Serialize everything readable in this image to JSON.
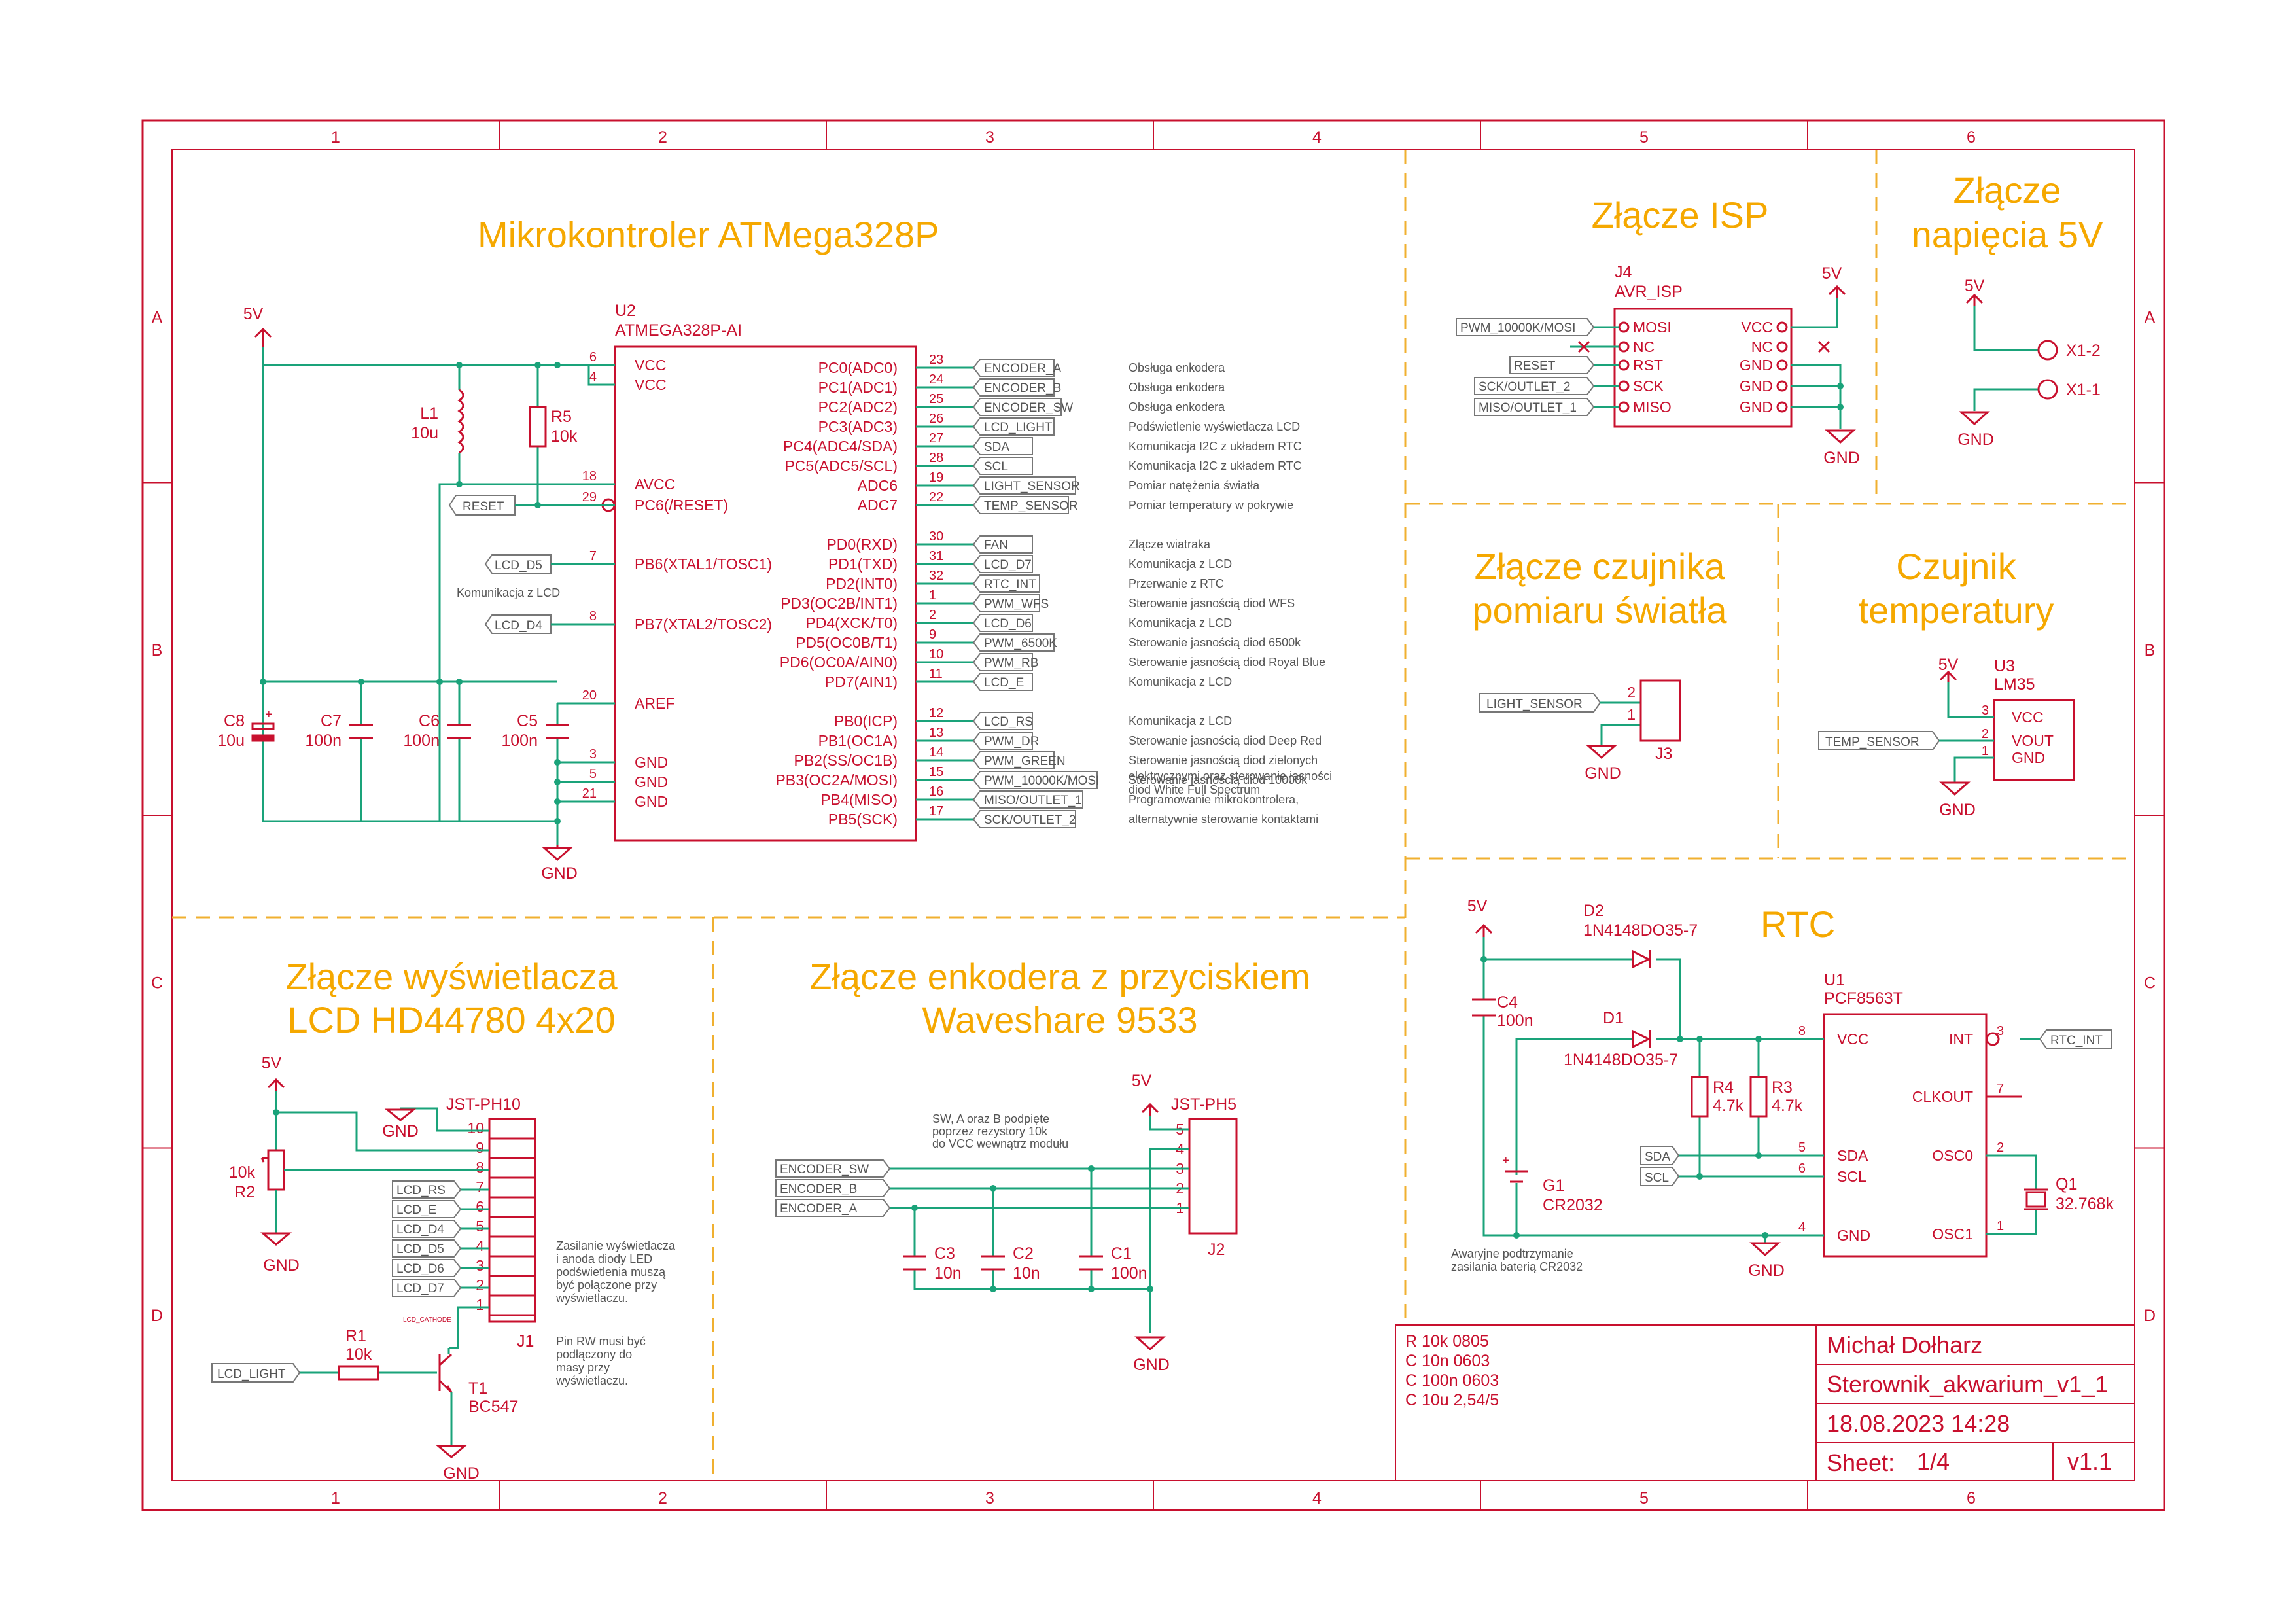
{
  "frame": {
    "columns": [
      "1",
      "2",
      "3",
      "4",
      "5",
      "6"
    ],
    "rows": [
      "A",
      "B",
      "C",
      "D"
    ]
  },
  "sections": {
    "mcu": "Mikrokontroler ATMega328P",
    "isp": "Złącze ISP",
    "power_1": "Złącze",
    "power_2": "napięcia 5V",
    "light_1": "Złącze czujnika",
    "light_2": "pomiaru światła",
    "temp_1": "Czujnik",
    "temp_2": "temperatury",
    "lcd_1": "Złącze wyświetlacza",
    "lcd_2": "LCD HD44780 4x20",
    "enc_1": "Złącze enkodera z przyciskiem",
    "enc_2": "Waveshare 9533",
    "rtc": "RTC"
  },
  "power": {
    "vcc": "5V",
    "gnd": "GND"
  },
  "mcu": {
    "ref": "U2",
    "value": "ATMEGA328P-AI",
    "left_pins": [
      {
        "num": "6",
        "name": "VCC"
      },
      {
        "num": "4",
        "name": "VCC"
      },
      {
        "num": "18",
        "name": "AVCC"
      },
      {
        "num": "29",
        "name": "PC6(/RESET)"
      },
      {
        "num": "7",
        "name": "PB6(XTAL1/TOSC1)"
      },
      {
        "num": "8",
        "name": "PB7(XTAL2/TOSC2)"
      },
      {
        "num": "20",
        "name": "AREF"
      },
      {
        "num": "3",
        "name": "GND"
      },
      {
        "num": "5",
        "name": "GND"
      },
      {
        "num": "21",
        "name": "GND"
      }
    ],
    "right_pins": [
      {
        "num": "23",
        "name": "PC0(ADC0)",
        "net": "ENCODER_A",
        "desc": "Obsługa enkodera"
      },
      {
        "num": "24",
        "name": "PC1(ADC1)",
        "net": "ENCODER_B",
        "desc": "Obsługa enkodera"
      },
      {
        "num": "25",
        "name": "PC2(ADC2)",
        "net": "ENCODER_SW",
        "desc": "Obsługa enkodera"
      },
      {
        "num": "26",
        "name": "PC3(ADC3)",
        "net": "LCD_LIGHT",
        "desc": "Podświetlenie wyświetlacza LCD"
      },
      {
        "num": "27",
        "name": "PC4(ADC4/SDA)",
        "net": "SDA",
        "desc": "Komunikacja I2C z układem RTC"
      },
      {
        "num": "28",
        "name": "PC5(ADC5/SCL)",
        "net": "SCL",
        "desc": "Komunikacja I2C z układem RTC"
      },
      {
        "num": "19",
        "name": "ADC6",
        "net": "LIGHT_SENSOR",
        "desc": "Pomiar natężenia światła"
      },
      {
        "num": "22",
        "name": "ADC7",
        "net": "TEMP_SENSOR",
        "desc": "Pomiar temperatury w pokrywie"
      },
      {
        "num": "30",
        "name": "PD0(RXD)",
        "net": "FAN",
        "desc": "Złącze wiatraka"
      },
      {
        "num": "31",
        "name": "PD1(TXD)",
        "net": "LCD_D7",
        "desc": "Komunikacja z LCD"
      },
      {
        "num": "32",
        "name": "PD2(INT0)",
        "net": "RTC_INT",
        "desc": "Przerwanie z RTC"
      },
      {
        "num": "1",
        "name": "PD3(OC2B/INT1)",
        "net": "PWM_WFS",
        "desc": "Sterowanie jasnością diod WFS"
      },
      {
        "num": "2",
        "name": "PD4(XCK/T0)",
        "net": "LCD_D6",
        "desc": "Komunikacja z LCD"
      },
      {
        "num": "9",
        "name": "PD5(OC0B/T1)",
        "net": "PWM_6500K",
        "desc": "Sterowanie jasnością diod 6500k"
      },
      {
        "num": "10",
        "name": "PD6(OC0A/AIN0)",
        "net": "PWM_RB",
        "desc": "Sterowanie jasnością diod Royal Blue"
      },
      {
        "num": "11",
        "name": "PD7(AIN1)",
        "net": "LCD_E",
        "desc": "Komunikacja z LCD"
      },
      {
        "num": "12",
        "name": "PB0(ICP)",
        "net": "LCD_RS",
        "desc": "Komunikacja z LCD"
      },
      {
        "num": "13",
        "name": "PB1(OC1A)",
        "net": "PWM_DR",
        "desc": "Sterowanie jasnością diod Deep Red"
      },
      {
        "num": "14",
        "name": "PB2(SS/OC1B)",
        "net": "PWM_GREEN",
        "desc": "Sterowanie jasnością diod zielonych"
      },
      {
        "num": "15",
        "name": "PB3(OC2A/MOSI)",
        "net": "PWM_10000K/MOSI",
        "desc": "Sterowanie jasnością diod 10000k"
      },
      {
        "num": "16",
        "name": "PB4(MISO)",
        "net": "MISO/OUTLET_1",
        "desc": "Programowanie mikrokontrolera,"
      },
      {
        "num": "17",
        "name": "PB5(SCK)",
        "net": "SCK/OUTLET_2",
        "desc": "alternatywnie sterowanie kontaktami"
      }
    ],
    "desc_extra": [
      "elektrycznymi oraz sterowanie jasności",
      "diod White Full Spectrum"
    ],
    "lcd_note": "Komunikacja z LCD",
    "reset_flag": "RESET",
    "lcd_d5_flag": "LCD_D5",
    "lcd_d4_flag": "LCD_D4",
    "l1": {
      "ref": "L1",
      "value": "10u"
    },
    "r5": {
      "ref": "R5",
      "value": "10k"
    },
    "c8": {
      "ref": "C8",
      "value": "10u"
    },
    "c7": {
      "ref": "C7",
      "value": "100n"
    },
    "c6": {
      "ref": "C6",
      "value": "100n"
    },
    "c5": {
      "ref": "C5",
      "value": "100n"
    }
  },
  "isp": {
    "ref": "J4",
    "value": "AVR_ISP",
    "left": [
      "MOSI",
      "NC",
      "RST",
      "SCK",
      "MISO"
    ],
    "right": [
      "VCC",
      "NC",
      "GND",
      "GND",
      "GND"
    ],
    "flags": [
      "PWM_10000K/MOSI",
      "RESET",
      "SCK/OUTLET_2",
      "MISO/OUTLET_1"
    ]
  },
  "psu": {
    "pin1": "X1-2",
    "pin2": "X1-1"
  },
  "j3": {
    "ref": "J3",
    "flag": "LIGHT_SENSOR",
    "pins": [
      "2",
      "1"
    ]
  },
  "u3": {
    "ref": "U3",
    "value": "LM35",
    "flag": "TEMP_SENSOR",
    "pins": [
      {
        "num": "3",
        "name": "VCC"
      },
      {
        "num": "2",
        "name": "VOUT"
      },
      {
        "num": "1",
        "name": "GND"
      }
    ]
  },
  "lcd": {
    "ref": "J1",
    "value": "JST-PH10",
    "pins": [
      "10",
      "9",
      "8",
      "7",
      "6",
      "5",
      "4",
      "3",
      "2",
      "1"
    ],
    "flags": [
      "LCD_RS",
      "LCD_E",
      "LCD_D4",
      "LCD_D5",
      "LCD_D6",
      "LCD_D7"
    ],
    "r2": {
      "ref": "R2",
      "value": "10k"
    },
    "r1": {
      "ref": "R1",
      "value": "10k"
    },
    "t1": {
      "ref": "T1",
      "value": "BC547"
    },
    "light_flag": "LCD_LIGHT",
    "cathode": "LCD_CATHODE",
    "note1": [
      "Zasilanie wyświetlacza",
      "i anoda diody LED",
      "podświetlenia muszą",
      "być połączone przy",
      "wyświetlaczu."
    ],
    "note2": [
      "Pin RW musi być",
      "podłączony do",
      "masy przy",
      "wyświetlaczu."
    ]
  },
  "encoder": {
    "ref": "J2",
    "value": "JST-PH5",
    "pins": [
      "5",
      "4",
      "3",
      "2",
      "1"
    ],
    "flags": [
      "ENCODER_SW",
      "ENCODER_B",
      "ENCODER_A"
    ],
    "note": [
      "SW, A oraz B podpięte",
      "poprzez rezystory 10k",
      "do VCC wewnątrz modułu"
    ],
    "c3": {
      "ref": "C3",
      "value": "10n"
    },
    "c2": {
      "ref": "C2",
      "value": "10n"
    },
    "c1": {
      "ref": "C1",
      "value": "100n"
    }
  },
  "rtc": {
    "ref": "U1",
    "value": "PCF8563T",
    "left_pins": [
      {
        "num": "8",
        "name": "VCC"
      },
      {
        "num": "5",
        "name": "SDA"
      },
      {
        "num": "6",
        "name": "SCL"
      },
      {
        "num": "4",
        "name": "GND"
      }
    ],
    "right_pins": [
      {
        "num": "3",
        "name": "INT"
      },
      {
        "num": "7",
        "name": "CLKOUT"
      },
      {
        "num": "2",
        "name": "OSC0"
      },
      {
        "num": "1",
        "name": "OSC1"
      }
    ],
    "d2": {
      "ref": "D2",
      "value": "1N4148DO35-7"
    },
    "d1": {
      "ref": "D1",
      "value": "1N4148DO35-7"
    },
    "c4": {
      "ref": "C4",
      "value": "100n"
    },
    "r4": {
      "ref": "R4",
      "value": "4.7k"
    },
    "r3": {
      "ref": "R3",
      "value": "4.7k"
    },
    "g1": {
      "ref": "G1",
      "value": "CR2032"
    },
    "q1": {
      "ref": "Q1",
      "value": "32.768k"
    },
    "flags": [
      "RTC_INT",
      "SDA",
      "SCL"
    ],
    "note": [
      "Awaryjne podtrzymanie",
      "zasilania baterią CR2032"
    ]
  },
  "parts_list": [
    "R 10k 0805",
    "C 10n 0603",
    "C 100n 0603",
    "C 10u 2,54/5"
  ],
  "title_block": {
    "author": "Michał Dołharz",
    "project": "Sterownik_akwarium_v1_1",
    "date": "18.08.2023 14:28",
    "sheet_label": "Sheet:",
    "sheet": "1/4",
    "version": "v1.1"
  }
}
